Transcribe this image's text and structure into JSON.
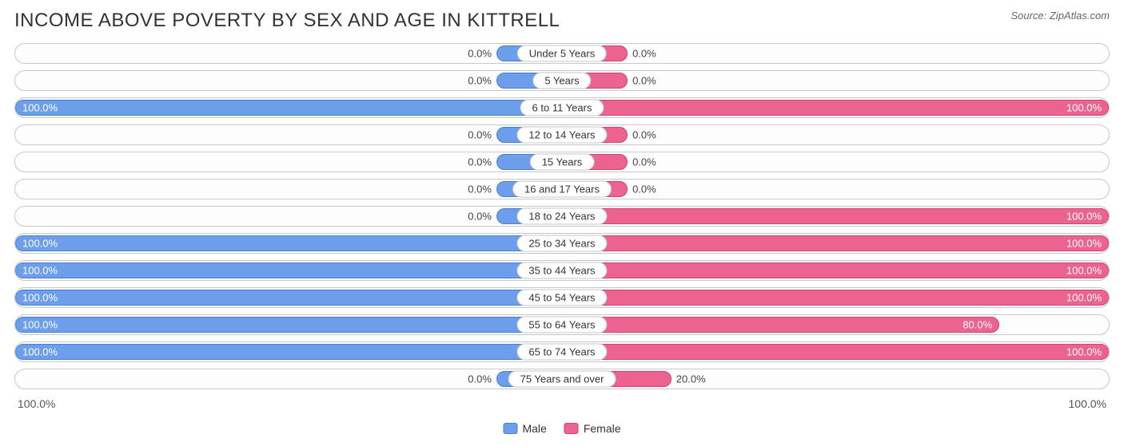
{
  "title": "INCOME ABOVE POVERTY BY SEX AND AGE IN KITTRELL",
  "source": "Source: ZipAtlas.com",
  "chart": {
    "type": "diverging-bar",
    "male_color": "#6d9eeb",
    "male_border": "#4a7fd0",
    "female_color": "#ec638f",
    "female_border": "#d1426f",
    "row_background": "#fdfdfd",
    "row_border": "#c8c8c8",
    "min_bar_pct": 12,
    "axis_left": "100.0%",
    "axis_right": "100.0%",
    "legend": {
      "male": "Male",
      "female": "Female"
    },
    "rows": [
      {
        "category": "Under 5 Years",
        "male": 0.0,
        "male_label": "0.0%",
        "female": 0.0,
        "female_label": "0.0%"
      },
      {
        "category": "5 Years",
        "male": 0.0,
        "male_label": "0.0%",
        "female": 0.0,
        "female_label": "0.0%"
      },
      {
        "category": "6 to 11 Years",
        "male": 100.0,
        "male_label": "100.0%",
        "female": 100.0,
        "female_label": "100.0%"
      },
      {
        "category": "12 to 14 Years",
        "male": 0.0,
        "male_label": "0.0%",
        "female": 0.0,
        "female_label": "0.0%"
      },
      {
        "category": "15 Years",
        "male": 0.0,
        "male_label": "0.0%",
        "female": 0.0,
        "female_label": "0.0%"
      },
      {
        "category": "16 and 17 Years",
        "male": 0.0,
        "male_label": "0.0%",
        "female": 0.0,
        "female_label": "0.0%"
      },
      {
        "category": "18 to 24 Years",
        "male": 0.0,
        "male_label": "0.0%",
        "female": 100.0,
        "female_label": "100.0%"
      },
      {
        "category": "25 to 34 Years",
        "male": 100.0,
        "male_label": "100.0%",
        "female": 100.0,
        "female_label": "100.0%"
      },
      {
        "category": "35 to 44 Years",
        "male": 100.0,
        "male_label": "100.0%",
        "female": 100.0,
        "female_label": "100.0%"
      },
      {
        "category": "45 to 54 Years",
        "male": 100.0,
        "male_label": "100.0%",
        "female": 100.0,
        "female_label": "100.0%"
      },
      {
        "category": "55 to 64 Years",
        "male": 100.0,
        "male_label": "100.0%",
        "female": 80.0,
        "female_label": "80.0%"
      },
      {
        "category": "65 to 74 Years",
        "male": 100.0,
        "male_label": "100.0%",
        "female": 100.0,
        "female_label": "100.0%"
      },
      {
        "category": "75 Years and over",
        "male": 0.0,
        "male_label": "0.0%",
        "female": 20.0,
        "female_label": "20.0%"
      }
    ]
  }
}
